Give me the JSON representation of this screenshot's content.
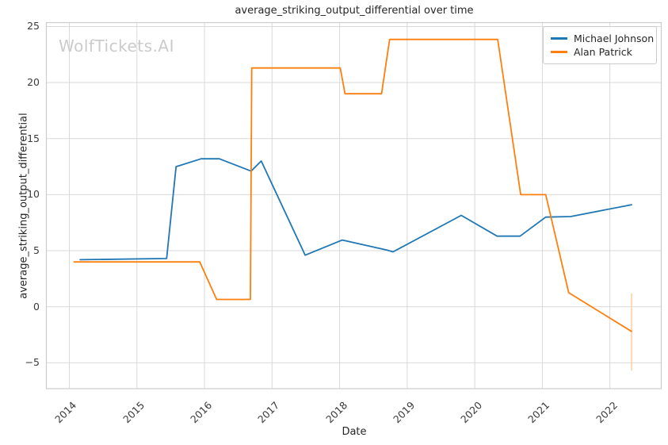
{
  "watermark": "WolfTickets.AI",
  "chart_data": {
    "type": "line",
    "title": "average_striking_output_differential over time",
    "xlabel": "Date",
    "ylabel": "average_striking_output_differential",
    "xlim": [
      2013.66,
      2022.76
    ],
    "ylim": [
      -7.31,
      25.35
    ],
    "xticks": [
      2014,
      2015,
      2016,
      2017,
      2018,
      2019,
      2020,
      2021,
      2022
    ],
    "yticks": [
      -5,
      0,
      5,
      10,
      15,
      20,
      25
    ],
    "grid": true,
    "grid_color": "#d9d9d9",
    "spine_color": "#cccccc",
    "background": "#ffffff",
    "legend_position": "upper right",
    "series": [
      {
        "name": "Michael Johnson",
        "color": "#1f77b4",
        "points": [
          [
            2014.16,
            4.2
          ],
          [
            2015.44,
            4.3
          ],
          [
            2015.58,
            12.5
          ],
          [
            2015.95,
            13.2
          ],
          [
            2016.22,
            13.2
          ],
          [
            2016.69,
            12.1
          ],
          [
            2016.84,
            13.0
          ],
          [
            2017.49,
            4.6
          ],
          [
            2018.04,
            5.95
          ],
          [
            2018.7,
            5.05
          ],
          [
            2018.79,
            4.9
          ],
          [
            2019.8,
            8.15
          ],
          [
            2020.33,
            6.3
          ],
          [
            2020.67,
            6.3
          ],
          [
            2021.05,
            8.0
          ],
          [
            2021.42,
            8.05
          ],
          [
            2022.32,
            9.1
          ]
        ]
      },
      {
        "name": "Alan Patrick",
        "color": "#ff7f0e",
        "points": [
          [
            2014.07,
            4.0
          ],
          [
            2015.93,
            4.0
          ],
          [
            2016.18,
            0.65
          ],
          [
            2016.68,
            0.65
          ],
          [
            2016.7,
            21.3
          ],
          [
            2018.01,
            21.3
          ],
          [
            2018.08,
            19.0
          ],
          [
            2018.62,
            19.0
          ],
          [
            2018.74,
            23.85
          ],
          [
            2020.34,
            23.85
          ],
          [
            2020.68,
            10.0
          ],
          [
            2021.05,
            10.0
          ],
          [
            2021.39,
            1.25
          ],
          [
            2022.32,
            -2.2
          ]
        ],
        "error_bar": {
          "x": 2022.32,
          "y_low": -5.7,
          "y_high": 1.2,
          "color": "#ffd0a3"
        }
      }
    ]
  }
}
